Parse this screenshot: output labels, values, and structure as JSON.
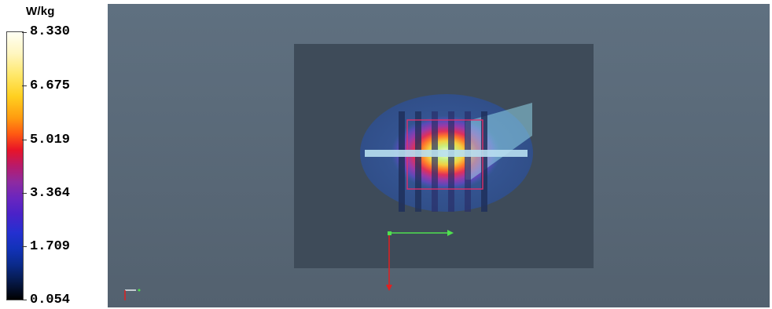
{
  "legend": {
    "unit": "W/kg",
    "labels": [
      "8.330",
      "6.675",
      "5.019",
      "3.364",
      "1.709",
      "0.054"
    ]
  },
  "viewport": {
    "background": "#5f7080",
    "phantom_color": "#3e4b59",
    "axes_colors": {
      "x": "#4fe04f",
      "y": "#e02020"
    },
    "icons": [
      "axis-triad-icon",
      "axis-triad-icon"
    ]
  }
}
